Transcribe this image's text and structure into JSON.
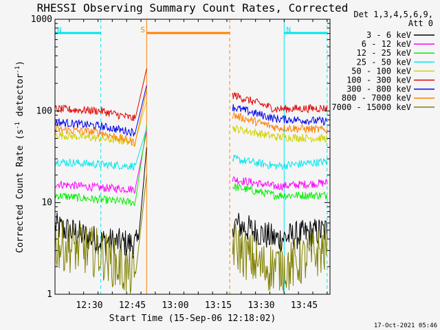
{
  "chart_data": {
    "type": "line",
    "title": "RHESSI Observing Summary Count Rates, Corrected",
    "xlabel": "Start Time (15-Sep-06 12:18:02)",
    "ylabel": "Corrected Count Rate (s",
    "ylabel_sup": "-1",
    "ylabel_tail": " detector",
    "ylabel_sup2": "-1",
    "ylabel_close": ")",
    "y_scale": "log",
    "ylim": [
      1,
      1000
    ],
    "xlim": [
      "12:18",
      "13:54"
    ],
    "x_ticks": [
      "12:30",
      "12:45",
      "13:00",
      "13:15",
      "13:30",
      "13:45"
    ],
    "y_ticks": [
      "1",
      "10",
      "100",
      "1000"
    ],
    "legend_position": "top-right, outside plot",
    "legend_header": [
      "Det 1,3,4,5,6,9,",
      "Att 0"
    ],
    "timestamp": "17-Oct-2021 05:46",
    "flags": [
      {
        "label": "N",
        "color": "#00e5ee",
        "start": "12:18",
        "end": "12:34"
      },
      {
        "label": "N",
        "color": "#00e5ee",
        "start": "13:38",
        "end": "13:53"
      },
      {
        "label": "S",
        "color": "#ff8000",
        "start": "12:50",
        "end": "13:19"
      }
    ],
    "markers": [
      {
        "time": "12:34",
        "color": "#00e5ee",
        "style": "dashed"
      },
      {
        "time": "13:38",
        "color": "#00e5ee",
        "style": "solid"
      },
      {
        "time": "13:53",
        "color": "#00e5ee",
        "style": "dashed"
      },
      {
        "time": "12:50",
        "color": "#ff8000",
        "style": "solid"
      },
      {
        "time": "13:19",
        "color": "#ff8000",
        "style": "dashed"
      }
    ],
    "gaps": [
      [
        "12:51",
        "13:20"
      ]
    ],
    "series": [
      {
        "name": "3 - 6 keV",
        "color": "#000000",
        "points": [
          [
            "12:18",
            5.5
          ],
          [
            "12:34",
            3.8
          ],
          [
            "12:47",
            3.5
          ],
          [
            "12:50",
            40
          ],
          [
            "13:20",
            6
          ],
          [
            "13:35",
            4
          ],
          [
            "13:53",
            5
          ]
        ]
      },
      {
        "name": "6 - 12 keV",
        "color": "#ff00ff",
        "points": [
          [
            "12:18",
            16
          ],
          [
            "12:34",
            14.5
          ],
          [
            "12:46",
            14
          ],
          [
            "12:50",
            60
          ],
          [
            "13:20",
            18
          ],
          [
            "13:35",
            15
          ],
          [
            "13:53",
            16.5
          ]
        ]
      },
      {
        "name": "12 - 25 keV",
        "color": "#00ee00",
        "points": [
          [
            "12:18",
            12
          ],
          [
            "12:30",
            11
          ],
          [
            "12:46",
            10
          ],
          [
            "12:50",
            70
          ],
          [
            "13:20",
            15
          ],
          [
            "13:35",
            12
          ],
          [
            "13:53",
            12
          ]
        ]
      },
      {
        "name": "25 - 50 keV",
        "color": "#00e5ee",
        "points": [
          [
            "12:18",
            28
          ],
          [
            "12:34",
            26
          ],
          [
            "12:46",
            25
          ],
          [
            "12:50",
            65
          ],
          [
            "13:20",
            30
          ],
          [
            "13:35",
            25
          ],
          [
            "13:53",
            28
          ]
        ]
      },
      {
        "name": "50 - 100 keV",
        "color": "#d2d200",
        "points": [
          [
            "12:18",
            55
          ],
          [
            "12:34",
            50
          ],
          [
            "12:46",
            46
          ],
          [
            "12:50",
            130
          ],
          [
            "13:20",
            65
          ],
          [
            "13:35",
            52
          ],
          [
            "13:53",
            50
          ]
        ]
      },
      {
        "name": "100 - 300 keV",
        "color": "#e00000",
        "points": [
          [
            "12:18",
            105
          ],
          [
            "12:34",
            100
          ],
          [
            "12:46",
            82
          ],
          [
            "12:50",
            290
          ],
          [
            "13:20",
            150
          ],
          [
            "13:35",
            105
          ],
          [
            "13:53",
            107
          ]
        ]
      },
      {
        "name": "300 - 800 keV",
        "color": "#0000ee",
        "points": [
          [
            "12:18",
            76
          ],
          [
            "12:34",
            68
          ],
          [
            "12:46",
            58
          ],
          [
            "12:50",
            190
          ],
          [
            "13:20",
            110
          ],
          [
            "13:35",
            82
          ],
          [
            "13:53",
            77
          ]
        ]
      },
      {
        "name": "800 - 7000 keV",
        "color": "#ff8000",
        "points": [
          [
            "12:18",
            63
          ],
          [
            "12:34",
            58
          ],
          [
            "12:46",
            45
          ],
          [
            "12:50",
            170
          ],
          [
            "13:20",
            90
          ],
          [
            "13:35",
            66
          ],
          [
            "13:53",
            62
          ]
        ]
      },
      {
        "name": "7000 - 15000 keV",
        "color": "#808000",
        "points": [
          [
            "12:18",
            3.5
          ],
          [
            "12:34",
            2.8
          ],
          [
            "12:46",
            1.5
          ],
          [
            "12:50",
            20
          ],
          [
            "13:20",
            3.5
          ],
          [
            "13:30",
            2
          ],
          [
            "13:40",
            2
          ],
          [
            "13:53",
            3.2
          ]
        ]
      }
    ]
  }
}
